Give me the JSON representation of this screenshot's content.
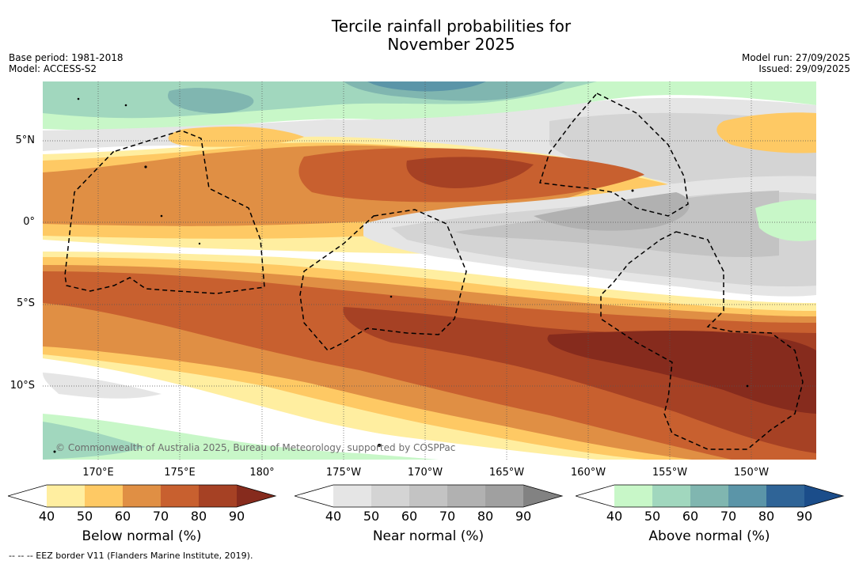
{
  "header": {
    "title_line1": "Tercile rainfall probabilities for",
    "title_line2": "November 2025",
    "base_period": "Base period: 1981-2018",
    "model": "Model: ACCESS-S2",
    "model_run": "Model run: 27/09/2025",
    "issued": "Issued: 29/09/2025"
  },
  "map": {
    "lat_labels": [
      "5°N",
      "0°",
      "5°S",
      "10°S"
    ],
    "lon_labels": [
      "170°E",
      "175°E",
      "180°",
      "175°W",
      "170°W",
      "165°W",
      "160°W",
      "155°W",
      "150°W"
    ],
    "copyright": "© Commonwealth of Australia 2025, Bureau of Meteorology, supported by COSPPac"
  },
  "colorbars": [
    {
      "name": "below",
      "label": "Below normal (%)",
      "ticks": [
        "40",
        "50",
        "60",
        "70",
        "80",
        "90"
      ],
      "colors": [
        "#ffffff",
        "#ffeea0",
        "#fec964",
        "#e08f44",
        "#c8602f",
        "#a64124",
        "#862b1d"
      ]
    },
    {
      "name": "near",
      "label": "Near normal (%)",
      "ticks": [
        "40",
        "50",
        "60",
        "70",
        "80",
        "90"
      ],
      "colors": [
        "#ffffff",
        "#e5e5e5",
        "#d4d4d4",
        "#c3c3c3",
        "#b1b1b1",
        "#a0a0a0",
        "#828282"
      ]
    },
    {
      "name": "above",
      "label": "Above normal (%)",
      "ticks": [
        "40",
        "50",
        "60",
        "70",
        "80",
        "90"
      ],
      "colors": [
        "#ffffff",
        "#c8f7c8",
        "#a1d7be",
        "#80b6b0",
        "#5b95a8",
        "#2f6497",
        "#1b4d8a"
      ]
    }
  ],
  "footnote": "--  --  -- EEZ border V11 (Flanders Marine Institute, 2019)."
}
